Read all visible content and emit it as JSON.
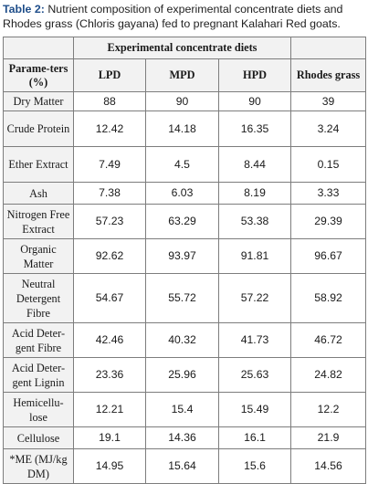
{
  "caption": {
    "label": "Table 2:",
    "text": "Nutrient composition of experimental concentrate diets and Rhodes grass (Chloris gayana) fed to pregnant Kalahari Red goats."
  },
  "table": {
    "group_header": "Experimental concentrate diets",
    "headers": [
      "Parame-ters (%)",
      "LPD",
      "MPD",
      "HPD",
      "Rhodes grass"
    ],
    "rows": [
      {
        "param": "Dry Matter",
        "values": [
          "88",
          "90",
          "90",
          "39"
        ]
      },
      {
        "param": "Crude Protein",
        "values": [
          "12.42",
          "14.18",
          "16.35",
          "3.24"
        ]
      },
      {
        "param": "Ether Extract",
        "values": [
          "7.49",
          "4.5",
          "8.44",
          "0.15"
        ]
      },
      {
        "param": "Ash",
        "values": [
          "7.38",
          "6.03",
          "8.19",
          "3.33"
        ]
      },
      {
        "param": "Nitrogen Free Extract",
        "values": [
          "57.23",
          "63.29",
          "53.38",
          "29.39"
        ]
      },
      {
        "param": "Organic Matter",
        "values": [
          "92.62",
          "93.97",
          "91.81",
          "96.67"
        ]
      },
      {
        "param": "Neutral Detergent Fibre",
        "values": [
          "54.67",
          "55.72",
          "57.22",
          "58.92"
        ]
      },
      {
        "param": "Acid Deter-gent Fibre",
        "values": [
          "42.46",
          "40.32",
          "41.73",
          "46.72"
        ]
      },
      {
        "param": "Acid Deter-gent Lignin",
        "values": [
          "23.36",
          "25.96",
          "25.63",
          "24.82"
        ]
      },
      {
        "param": "Hemicellu-lose",
        "values": [
          "12.21",
          "15.4",
          "15.49",
          "12.2"
        ]
      },
      {
        "param": "Cellulose",
        "values": [
          "19.1",
          "14.36",
          "16.1",
          "21.9"
        ]
      },
      {
        "param": "*ME (MJ/kg DM)",
        "values": [
          "14.95",
          "15.64",
          "15.6",
          "14.56"
        ]
      }
    ]
  }
}
